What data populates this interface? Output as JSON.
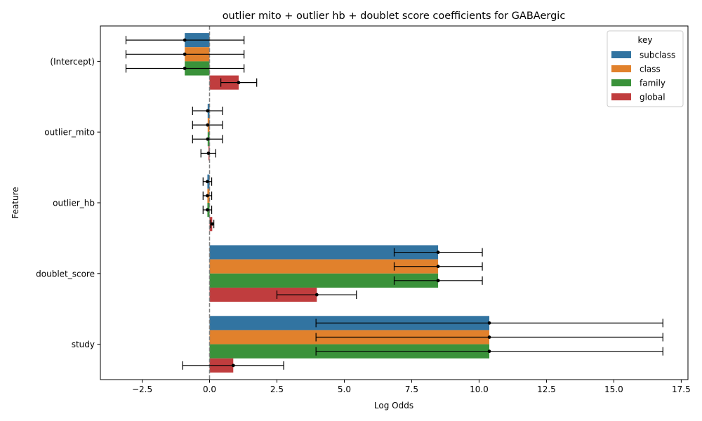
{
  "chart_data": {
    "type": "bar",
    "orientation": "horizontal",
    "title": "outlier mito + outlier hb + doublet score coefficients for GABAergic",
    "xlabel": "Log Odds",
    "ylabel": "Feature",
    "xlim": [
      -4.05,
      17.75
    ],
    "xticks": [
      -2.5,
      0.0,
      2.5,
      5.0,
      7.5,
      10.0,
      12.5,
      15.0,
      17.5
    ],
    "xtick_labels": [
      "−2.5",
      "0.0",
      "2.5",
      "5.0",
      "7.5",
      "10.0",
      "12.5",
      "15.0",
      "17.5"
    ],
    "reference_line": 0,
    "categories": [
      "(Intercept)",
      "outlier_mito",
      "outlier_hb",
      "doublet_score",
      "study"
    ],
    "legend": {
      "title": "key",
      "position": "top-right"
    },
    "series": [
      {
        "name": "subclass",
        "color": "#3274a1",
        "values": [
          -0.92,
          -0.07,
          -0.08,
          8.48,
          10.38
        ],
        "ci_low": [
          -3.1,
          -0.63,
          -0.24,
          6.85,
          3.95
        ],
        "ci_high": [
          1.28,
          0.48,
          0.08,
          10.12,
          16.82
        ]
      },
      {
        "name": "class",
        "color": "#e1812c",
        "values": [
          -0.92,
          -0.07,
          -0.08,
          8.48,
          10.38
        ],
        "ci_low": [
          -3.1,
          -0.63,
          -0.24,
          6.85,
          3.95
        ],
        "ci_high": [
          1.28,
          0.48,
          0.08,
          10.12,
          16.82
        ]
      },
      {
        "name": "family",
        "color": "#3a923a",
        "values": [
          -0.92,
          -0.07,
          -0.08,
          8.48,
          10.38
        ],
        "ci_low": [
          -3.1,
          -0.63,
          -0.24,
          6.85,
          3.95
        ],
        "ci_high": [
          1.28,
          0.48,
          0.08,
          10.12,
          16.82
        ]
      },
      {
        "name": "global",
        "color": "#c03d3e",
        "values": [
          1.08,
          -0.04,
          0.1,
          3.98,
          0.88
        ],
        "ci_low": [
          0.42,
          -0.32,
          0.04,
          2.5,
          -1.0
        ],
        "ci_high": [
          1.75,
          0.23,
          0.16,
          5.45,
          2.75
        ]
      }
    ]
  }
}
